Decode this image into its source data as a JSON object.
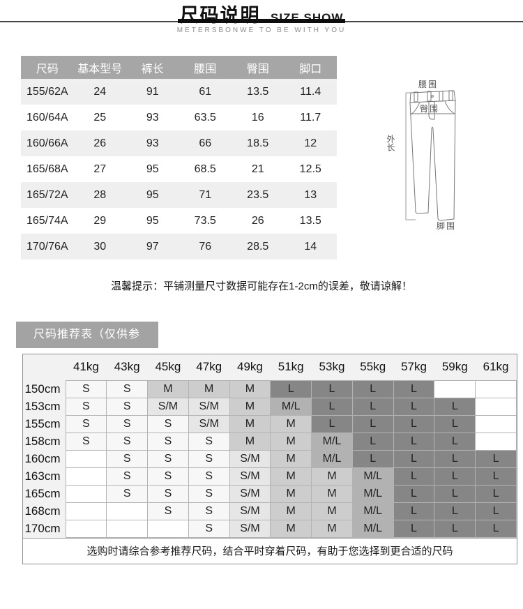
{
  "header": {
    "title_cn": "尺码说明",
    "title_en": "SIZE SHOW",
    "brand_line": "METERSBONWE TO BE WITH YOU"
  },
  "size_table": {
    "columns": [
      "尺码",
      "基本型号",
      "裤长",
      "腰围",
      "臀围",
      "脚口"
    ],
    "rows": [
      [
        "155/62A",
        "24",
        "91",
        "61",
        "13.5",
        "11.4"
      ],
      [
        "160/64A",
        "25",
        "93",
        "63.5",
        "16",
        "11.7"
      ],
      [
        "160/66A",
        "26",
        "93",
        "66",
        "18.5",
        "12"
      ],
      [
        "165/68A",
        "27",
        "95",
        "68.5",
        "21",
        "12.5"
      ],
      [
        "165/72A",
        "28",
        "95",
        "71",
        "23.5",
        "13"
      ],
      [
        "165/74A",
        "29",
        "95",
        "73.5",
        "26",
        "13.5"
      ],
      [
        "170/76A",
        "30",
        "97",
        "76",
        "28.5",
        "14"
      ]
    ]
  },
  "diagram": {
    "labels": {
      "waist": "腰围",
      "hip": "臀围",
      "outer_length": "外长",
      "leg_opening": "脚围"
    }
  },
  "tip": "温馨提示：平铺测量尺寸数据可能存在1-2cm的误差，敬请谅解！",
  "recommendation": {
    "title": "尺码推荐表（仅供参考）",
    "weight_headers": [
      "41kg",
      "43kg",
      "45kg",
      "47kg",
      "49kg",
      "51kg",
      "53kg",
      "55kg",
      "57kg",
      "59kg",
      "61kg"
    ],
    "height_labels": [
      "150cm",
      "153cm",
      "155cm",
      "158cm",
      "160cm",
      "163cm",
      "165cm",
      "168cm",
      "170cm"
    ],
    "cells": [
      [
        "S",
        "S",
        "M",
        "M",
        "M",
        "L",
        "L",
        "L",
        "L",
        "",
        ""
      ],
      [
        "S",
        "S",
        "S/M",
        "S/M",
        "M",
        "M/L",
        "L",
        "L",
        "L",
        "L",
        ""
      ],
      [
        "S",
        "S",
        "S",
        "S/M",
        "M",
        "M",
        "L",
        "L",
        "L",
        "L",
        ""
      ],
      [
        "S",
        "S",
        "S",
        "S",
        "M",
        "M",
        "M/L",
        "L",
        "L",
        "L",
        ""
      ],
      [
        "",
        "S",
        "S",
        "S",
        "S/M",
        "M",
        "M/L",
        "L",
        "L",
        "L",
        "L"
      ],
      [
        "",
        "S",
        "S",
        "S",
        "S/M",
        "M",
        "M",
        "M/L",
        "L",
        "L",
        "L"
      ],
      [
        "",
        "S",
        "S",
        "S",
        "S/M",
        "M",
        "M",
        "M/L",
        "L",
        "L",
        "L"
      ],
      [
        "",
        "",
        "S",
        "S",
        "S/M",
        "M",
        "M",
        "M/L",
        "L",
        "L",
        "L"
      ],
      [
        "",
        "",
        "",
        "S",
        "S/M",
        "M",
        "M",
        "M/L",
        "L",
        "L",
        "L"
      ]
    ],
    "footer": "选购时请综合参考推荐尺码，结合平时穿着尺码，有助于您选择到更合适的尺码"
  },
  "colors": {
    "table_header_gray": "#a6a6a6",
    "row_alt_gray": "#efefef",
    "band_gray": "#a3a3a3",
    "panel_bg": "#f2f2f2",
    "cell_s": "#f7f7f7",
    "cell_sm": "#e6e6e6",
    "cell_m": "#cdcdcd",
    "cell_ml": "#b2b2b2",
    "cell_l": "#868686"
  }
}
